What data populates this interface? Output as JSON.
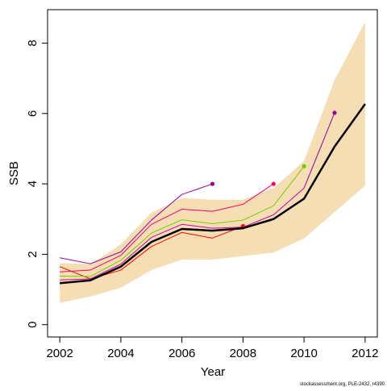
{
  "chart_data": {
    "type": "line",
    "title": "",
    "xlabel": "Year",
    "ylabel": "SSB",
    "xlim": [
      2001.6,
      2012.4
    ],
    "ylim": [
      -0.35,
      8.95
    ],
    "x_ticks": [
      2002,
      2004,
      2006,
      2008,
      2010,
      2012
    ],
    "y_ticks": [
      0,
      2,
      4,
      6,
      8
    ],
    "grid": false,
    "legend": "none",
    "footnote": "stockassessment.org, PLE-2432, r4390",
    "colors": {
      "band": "#f5deb3",
      "main": "#000000",
      "axis": "#000000"
    },
    "confidence_band": {
      "x": [
        2002,
        2003,
        2004,
        2005,
        2006,
        2007,
        2008,
        2009,
        2010,
        2011,
        2012
      ],
      "lower": [
        0.62,
        0.8,
        1.05,
        1.55,
        1.85,
        1.85,
        1.95,
        2.05,
        2.45,
        3.2,
        3.95
      ],
      "upper": [
        1.75,
        1.72,
        2.28,
        3.18,
        3.6,
        3.55,
        3.55,
        3.88,
        4.65,
        6.95,
        8.6
      ]
    },
    "series": [
      {
        "color": "#000000",
        "width": 2.5,
        "endpoint": false,
        "x": [
          2002,
          2003,
          2004,
          2005,
          2006,
          2007,
          2008,
          2009,
          2010,
          2011,
          2012
        ],
        "values": [
          1.18,
          1.26,
          1.65,
          2.35,
          2.72,
          2.67,
          2.74,
          3.0,
          3.58,
          5.06,
          6.27
        ]
      },
      {
        "color": "#9900a0",
        "width": 1,
        "endpoint": true,
        "x": [
          2002,
          2003,
          2004,
          2005,
          2006,
          2007
        ],
        "values": [
          1.9,
          1.73,
          2.07,
          2.97,
          3.7,
          4.0
        ]
      },
      {
        "color": "#ff0000",
        "width": 1,
        "endpoint": true,
        "x": [
          2002,
          2003,
          2004,
          2005,
          2006,
          2007,
          2008
        ],
        "values": [
          1.65,
          1.3,
          1.55,
          2.22,
          2.62,
          2.46,
          2.8
        ]
      },
      {
        "color": "#ff0066",
        "width": 1,
        "endpoint": true,
        "x": [
          2002,
          2003,
          2004,
          2005,
          2006,
          2007,
          2008,
          2009
        ],
        "values": [
          1.5,
          1.55,
          1.97,
          2.85,
          3.28,
          3.22,
          3.42,
          4.0
        ]
      },
      {
        "color": "#77cc00",
        "width": 1,
        "endpoint": true,
        "x": [
          2002,
          2003,
          2004,
          2005,
          2006,
          2007,
          2008,
          2009,
          2010
        ],
        "values": [
          1.38,
          1.37,
          1.83,
          2.6,
          2.98,
          2.87,
          2.97,
          3.38,
          4.5
        ]
      },
      {
        "color": "#cc00aa",
        "width": 1,
        "endpoint": false,
        "x": [
          2002,
          2003,
          2004,
          2005,
          2006,
          2007,
          2008,
          2009,
          2010
        ],
        "values": [
          1.27,
          1.3,
          1.72,
          2.48,
          2.85,
          2.74,
          2.77,
          3.12,
          3.88
        ]
      },
      {
        "color": "#9900a0",
        "width": 1,
        "endpoint": true,
        "x": [
          2010,
          2011
        ],
        "values": [
          3.88,
          6.02
        ]
      }
    ]
  }
}
